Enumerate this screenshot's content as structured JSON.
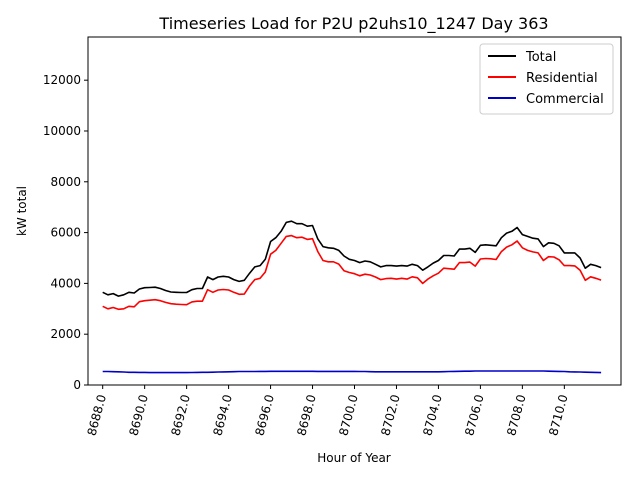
{
  "chart_data": {
    "type": "line",
    "title": "Timeseries Load for P2U p2uhs10_1247  Day 363",
    "xlabel": "Hour of Year",
    "ylabel": "kW total",
    "xlim": [
      8687.3,
      8712.7
    ],
    "ylim": [
      0,
      13700
    ],
    "xticks": [
      8688,
      8690,
      8692,
      8694,
      8696,
      8698,
      8700,
      8702,
      8704,
      8706,
      8708,
      8710
    ],
    "xtick_labels": [
      "8688.0",
      "8690.0",
      "8692.0",
      "8694.0",
      "8696.0",
      "8698.0",
      "8700.0",
      "8702.0",
      "8704.0",
      "8706.0",
      "8708.0",
      "8710.0"
    ],
    "yticks": [
      0,
      2000,
      4000,
      6000,
      8000,
      10000,
      12000
    ],
    "ytick_labels": [
      "0",
      "2000",
      "4000",
      "6000",
      "8000",
      "10000",
      "12000"
    ],
    "grid": false,
    "legend_position": "top-right",
    "x": [
      8688.0,
      8688.25,
      8688.5,
      8688.75,
      8689.0,
      8689.25,
      8689.5,
      8689.75,
      8690.0,
      8690.25,
      8690.5,
      8690.75,
      8691.0,
      8691.25,
      8691.5,
      8691.75,
      8692.0,
      8692.25,
      8692.5,
      8692.75,
      8693.0,
      8693.25,
      8693.5,
      8693.75,
      8694.0,
      8694.25,
      8694.5,
      8694.75,
      8695.0,
      8695.25,
      8695.5,
      8695.75,
      8696.0,
      8696.25,
      8696.5,
      8696.75,
      8697.0,
      8697.25,
      8697.5,
      8697.75,
      8698.0,
      8698.25,
      8698.5,
      8698.75,
      8699.0,
      8699.25,
      8699.5,
      8699.75,
      8700.0,
      8700.25,
      8700.5,
      8700.75,
      8701.0,
      8701.25,
      8701.5,
      8701.75,
      8702.0,
      8702.25,
      8702.5,
      8702.75,
      8703.0,
      8703.25,
      8703.5,
      8703.75,
      8704.0,
      8704.25,
      8704.5,
      8704.75,
      8705.0,
      8705.25,
      8705.5,
      8705.75,
      8706.0,
      8706.25,
      8706.5,
      8706.75,
      8707.0,
      8707.25,
      8707.5,
      8707.75,
      8708.0,
      8708.25,
      8708.5,
      8708.75,
      8709.0,
      8709.25,
      8709.5,
      8709.75,
      8710.0,
      8710.25,
      8710.5,
      8710.75,
      8711.0,
      8711.25,
      8711.5,
      8711.75
    ],
    "series": [
      {
        "name": "Total",
        "color": "#000000",
        "values": [
          3650,
          3550,
          3600,
          3500,
          3550,
          3650,
          3620,
          3780,
          3830,
          3840,
          3850,
          3800,
          3720,
          3660,
          3650,
          3640,
          3640,
          3750,
          3800,
          3800,
          4250,
          4150,
          4250,
          4280,
          4250,
          4150,
          4080,
          4120,
          4400,
          4650,
          4700,
          4950,
          5650,
          5800,
          6050,
          6400,
          6450,
          6350,
          6350,
          6250,
          6280,
          5750,
          5450,
          5400,
          5380,
          5300,
          5080,
          4950,
          4900,
          4820,
          4880,
          4850,
          4750,
          4650,
          4700,
          4700,
          4680,
          4700,
          4680,
          4750,
          4700,
          4520,
          4650,
          4800,
          4900,
          5100,
          5100,
          5080,
          5350,
          5350,
          5380,
          5220,
          5500,
          5520,
          5500,
          5480,
          5800,
          5980,
          6050,
          6200,
          5920,
          5850,
          5780,
          5750,
          5450,
          5600,
          5580,
          5480,
          5200,
          5200,
          5200,
          5000,
          4600,
          4750,
          4700,
          4620
        ]
      },
      {
        "name": "Residential",
        "color": "#ff0000",
        "values": [
          3100,
          3000,
          3050,
          2980,
          3000,
          3100,
          3080,
          3280,
          3320,
          3340,
          3360,
          3320,
          3250,
          3200,
          3180,
          3170,
          3160,
          3270,
          3300,
          3300,
          3750,
          3650,
          3740,
          3760,
          3740,
          3650,
          3570,
          3580,
          3900,
          4150,
          4200,
          4450,
          5150,
          5300,
          5580,
          5850,
          5880,
          5800,
          5820,
          5730,
          5760,
          5250,
          4900,
          4850,
          4850,
          4760,
          4500,
          4430,
          4380,
          4300,
          4360,
          4330,
          4250,
          4150,
          4190,
          4200,
          4170,
          4200,
          4170,
          4260,
          4220,
          4000,
          4170,
          4300,
          4400,
          4600,
          4580,
          4560,
          4820,
          4820,
          4840,
          4680,
          4960,
          4980,
          4970,
          4940,
          5250,
          5430,
          5520,
          5670,
          5400,
          5300,
          5240,
          5200,
          4900,
          5050,
          5040,
          4930,
          4700,
          4700,
          4690,
          4520,
          4120,
          4260,
          4200,
          4130
        ]
      },
      {
        "name": "Commercial",
        "color": "#0000cc",
        "values": [
          530,
          530,
          525,
          520,
          510,
          500,
          500,
          495,
          495,
          490,
          488,
          488,
          488,
          488,
          488,
          490,
          490,
          492,
          495,
          500,
          500,
          505,
          510,
          515,
          520,
          525,
          530,
          530,
          530,
          530,
          535,
          535,
          540,
          540,
          540,
          540,
          540,
          540,
          540,
          540,
          540,
          535,
          535,
          535,
          535,
          535,
          535,
          535,
          535,
          530,
          530,
          525,
          520,
          520,
          520,
          520,
          520,
          520,
          520,
          520,
          520,
          520,
          520,
          520,
          520,
          525,
          530,
          535,
          540,
          545,
          545,
          550,
          550,
          550,
          550,
          550,
          550,
          550,
          550,
          550,
          550,
          550,
          550,
          550,
          550,
          545,
          540,
          535,
          530,
          520,
          515,
          510,
          505,
          500,
          495,
          490
        ]
      }
    ]
  }
}
